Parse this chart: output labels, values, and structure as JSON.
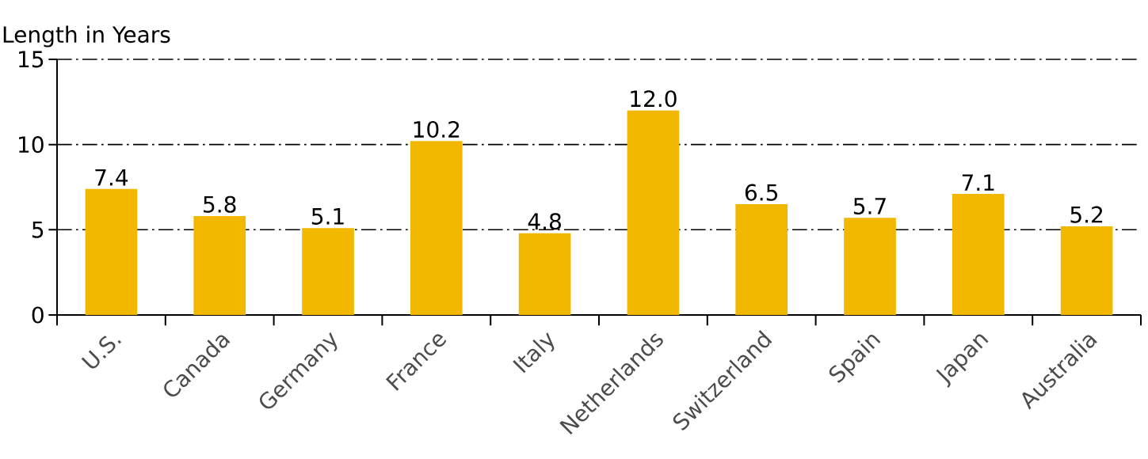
{
  "chart_data": {
    "type": "bar",
    "ylabel": "Length in Years",
    "categories": [
      "U.S.",
      "Canada",
      "Germany",
      "France",
      "Italy",
      "Netherlands",
      "Switzerland",
      "Spain",
      "Japan",
      "Australia"
    ],
    "values": [
      7.4,
      5.8,
      5.1,
      10.2,
      4.8,
      12.0,
      6.5,
      5.7,
      7.1,
      5.2
    ],
    "value_labels": [
      "7.4",
      "5.8",
      "5.1",
      "10.2",
      "4.8",
      "12.0",
      "6.5",
      "5.7",
      "7.1",
      "5.2"
    ],
    "color": "#f2b800",
    "ylim": [
      0,
      15
    ],
    "yticks": [
      0,
      5,
      10,
      15
    ],
    "grid": "y"
  }
}
